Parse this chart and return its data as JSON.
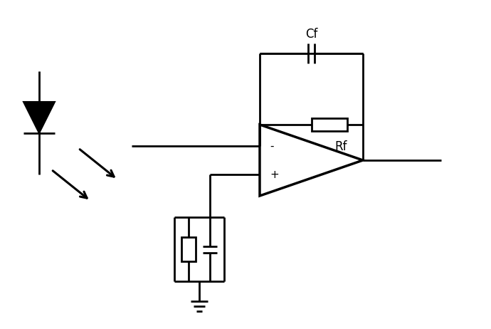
{
  "bg_color": "#ffffff",
  "line_color": "#000000",
  "line_width": 2.0,
  "fig_width": 6.9,
  "fig_height": 4.62,
  "dpi": 100,
  "label_Cf": "Cf",
  "label_Rf": "Rf"
}
